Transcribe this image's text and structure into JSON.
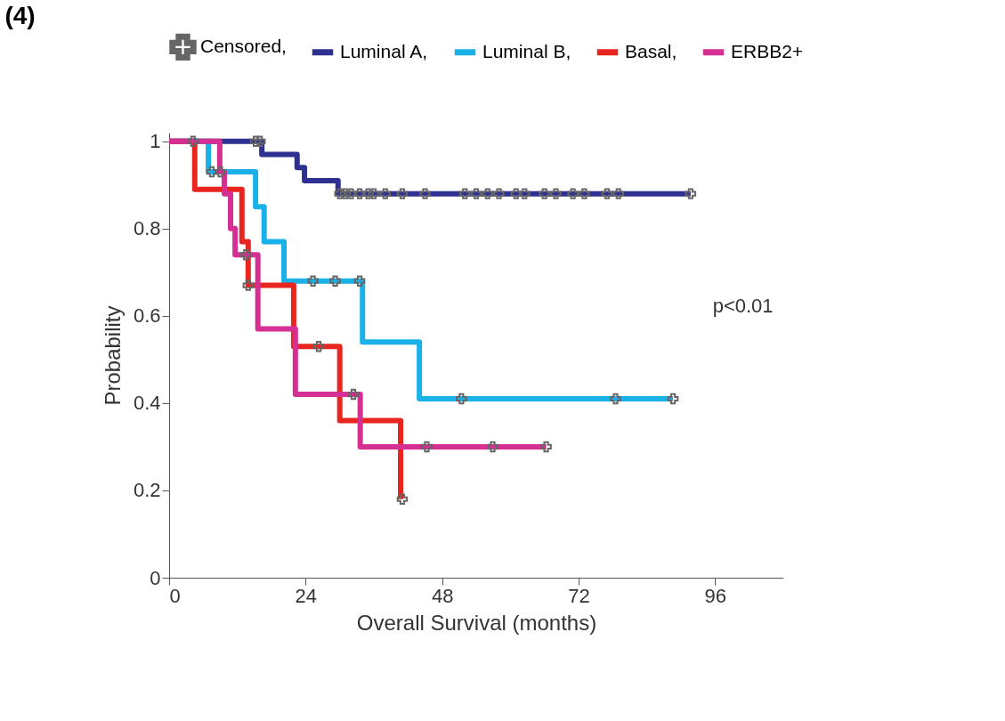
{
  "chart_data": {
    "type": "step",
    "title": "(4)",
    "xlabel": "Overall Survival (months)",
    "ylabel": "Probability",
    "xlim": [
      0,
      108
    ],
    "xticks": [
      0,
      24,
      48,
      72,
      96
    ],
    "ylim": [
      0,
      1.02
    ],
    "yticks": [
      0,
      0.2,
      0.4,
      0.6,
      0.8,
      1
    ],
    "grid": false,
    "legend": "top",
    "line_style": "solid",
    "annotations": [
      "p<0.01"
    ],
    "series": [
      {
        "name": "Censored,",
        "type": "scatter",
        "marker": "cross",
        "color": "#666666",
        "x": [
          15.2,
          16,
          30,
          31,
          32,
          33.5,
          35,
          36,
          38,
          41,
          45,
          52,
          54,
          56,
          58,
          61,
          62.5,
          66,
          68,
          71,
          73,
          77,
          79,
          91.7,
          7.5,
          25.3,
          29.2,
          33.5,
          51.4,
          78.5,
          88.6,
          4.2,
          13.9,
          26.3,
          41,
          9,
          13.5,
          32.4,
          45.3,
          56.9,
          66.3
        ],
        "values": [
          1,
          1,
          0.88,
          0.88,
          0.88,
          0.88,
          0.88,
          0.88,
          0.88,
          0.88,
          0.88,
          0.88,
          0.88,
          0.88,
          0.88,
          0.88,
          0.88,
          0.88,
          0.88,
          0.88,
          0.88,
          0.88,
          0.88,
          0.88,
          0.93,
          0.68,
          0.68,
          0.68,
          0.41,
          0.41,
          0.41,
          1,
          0.67,
          0.53,
          0.18,
          0.93,
          0.74,
          0.42,
          0.3,
          0.3,
          0.3
        ]
      },
      {
        "name": "Luminal A,",
        "color": "#2e3192",
        "x": [
          0,
          16.3,
          22.5,
          23.8,
          29.7,
          91.7
        ],
        "values": [
          1,
          0.97,
          0.94,
          0.91,
          0.88,
          0.88
        ]
      },
      {
        "name": "Luminal B,",
        "color": "#1ab0e8",
        "x": [
          0,
          6.9,
          15.2,
          16.7,
          20.2,
          34,
          44,
          88.6
        ],
        "values": [
          1,
          0.93,
          0.85,
          0.77,
          0.68,
          0.54,
          0.41,
          0.41
        ]
      },
      {
        "name": "Basal,",
        "color": "#e8251f",
        "x": [
          0,
          4.5,
          12.8,
          13.9,
          21.9,
          30,
          40.7
        ],
        "values": [
          1,
          0.89,
          0.77,
          0.67,
          0.53,
          0.36,
          0.18
        ]
      },
      {
        "name": "ERBB2+",
        "color": "#d62f93",
        "x": [
          0,
          8.9,
          9.7,
          10.8,
          11.6,
          15.6,
          22.2,
          33.6,
          66.3
        ],
        "values": [
          1,
          0.93,
          0.88,
          0.8,
          0.74,
          0.57,
          0.42,
          0.3,
          0.3
        ]
      }
    ]
  }
}
